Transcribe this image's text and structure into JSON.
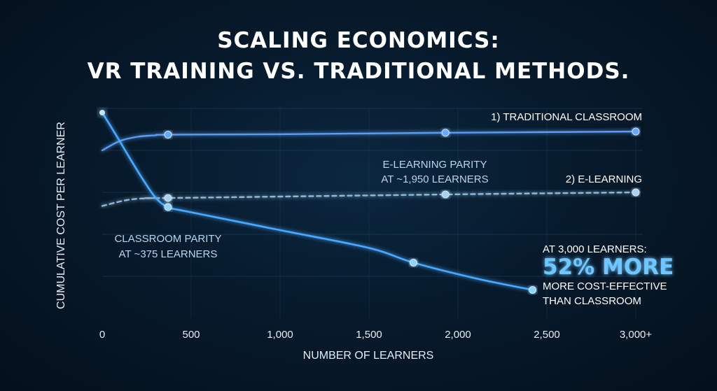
{
  "title": {
    "line1": "SCALING ECONOMICS:",
    "line2": "VR TRAINING VS. TRADITIONAL METHODS."
  },
  "chart_data": {
    "type": "line",
    "xlabel": "NUMBER OF LEARNERS",
    "ylabel": "CUMULATIVE COST PER LEARNER",
    "x_ticks": [
      {
        "value": 0,
        "label": "0"
      },
      {
        "value": 500,
        "label": "500"
      },
      {
        "value": 1000,
        "label": "1,000"
      },
      {
        "value": 1500,
        "label": "1,500"
      },
      {
        "value": 2000,
        "label": "2,000"
      },
      {
        "value": 2500,
        "label": "2,500"
      },
      {
        "value": 3000,
        "label": "3,000+"
      }
    ],
    "xlim": [
      0,
      3000
    ],
    "ylim": [
      0,
      100
    ],
    "grid": true,
    "series": [
      {
        "name": "1) TRADITIONAL CLASSROOM",
        "style": "solid",
        "color": "#5b9cf0",
        "points": [
          [
            0,
            80
          ],
          [
            100,
            84.5
          ],
          [
            200,
            86.5
          ],
          [
            300,
            87.2
          ],
          [
            370,
            87.5
          ],
          [
            1000,
            87.7
          ],
          [
            1930,
            88.4
          ],
          [
            3000,
            89
          ]
        ],
        "markers": [
          [
            370,
            87.5
          ],
          [
            1930,
            88.4
          ],
          [
            3000,
            89
          ]
        ]
      },
      {
        "name": "2) E-LEARNING",
        "style": "dashed",
        "color": "#8fb8d8",
        "points": [
          [
            0,
            53.5
          ],
          [
            150,
            56.5
          ],
          [
            300,
            57.3
          ],
          [
            370,
            57.3
          ],
          [
            1930,
            59
          ],
          [
            3000,
            60
          ]
        ],
        "markers": [
          [
            370,
            57.3
          ],
          [
            1930,
            59
          ],
          [
            3000,
            60
          ]
        ]
      },
      {
        "name": "",
        "style": "solid",
        "color": "#4aa8ff",
        "points": [
          [
            0,
            98
          ],
          [
            80,
            87
          ],
          [
            150,
            77
          ],
          [
            230,
            66
          ],
          [
            300,
            57.5
          ],
          [
            370,
            53
          ],
          [
            500,
            50.5
          ],
          [
            1000,
            42
          ],
          [
            1500,
            33.5
          ],
          [
            1750,
            26.5
          ],
          [
            2100,
            19
          ],
          [
            2420,
            13.5
          ]
        ],
        "markers": [
          [
            370,
            53
          ],
          [
            1750,
            26.5
          ],
          [
            2420,
            13.5
          ]
        ]
      }
    ],
    "annotations": [
      {
        "lines": [
          "CLASSROOM PARITY",
          "AT ~375 LEARNERS"
        ]
      },
      {
        "lines": [
          "E-LEARNING PARITY",
          "AT ~1,950 LEARNERS"
        ]
      }
    ],
    "callout": {
      "line1": "AT 3,000 LEARNERS:",
      "highlight": "52% MORE",
      "line2": "MORE COST-EFFECTIVE",
      "line3": "THAN CLASSROOM"
    }
  }
}
